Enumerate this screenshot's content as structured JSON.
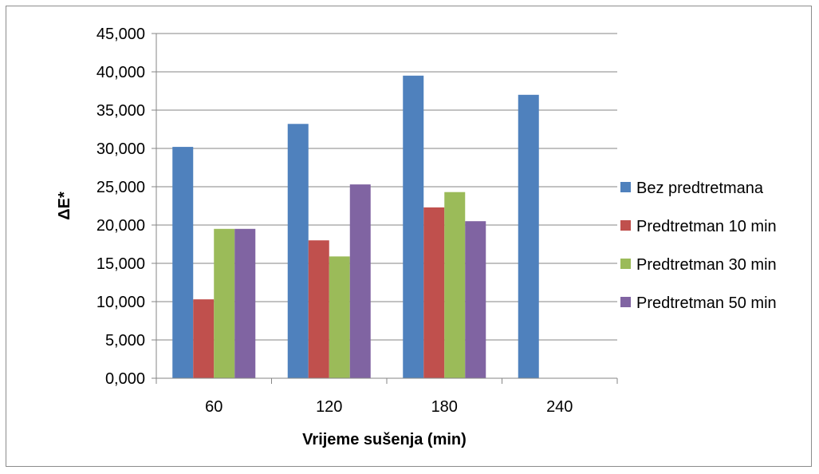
{
  "chart_data": {
    "type": "bar",
    "categories": [
      "60",
      "120",
      "180",
      "240"
    ],
    "series": [
      {
        "name": "Bez predtretmana",
        "color": "#4f81bd",
        "values": [
          30.2,
          33.2,
          39.5,
          37.0
        ]
      },
      {
        "name": "Predtretman 10 min",
        "color": "#c0504d",
        "values": [
          10.3,
          18.0,
          22.3,
          null
        ]
      },
      {
        "name": "Predtretman 30 min",
        "color": "#9bbb59",
        "values": [
          19.5,
          15.9,
          24.3,
          null
        ]
      },
      {
        "name": "Predtretman 50 min",
        "color": "#8064a2",
        "values": [
          19.5,
          25.3,
          20.5,
          null
        ]
      }
    ],
    "y_ticks": [
      "0,000",
      "5,000",
      "10,000",
      "15,000",
      "20,000",
      "25,000",
      "30,000",
      "35,000",
      "40,000",
      "45,000"
    ],
    "ylim": [
      0,
      45
    ],
    "xlabel": "Vrijeme sušenja (min)",
    "ylabel": "ΔE*",
    "grid": true,
    "legend_position": "right"
  }
}
